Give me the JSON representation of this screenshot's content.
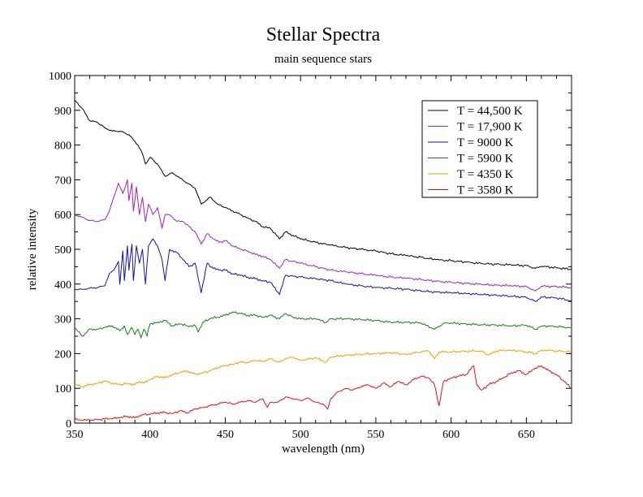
{
  "chart_data": {
    "type": "line",
    "title": "Stellar Spectra",
    "subtitle": "main sequence stars",
    "xlabel": "wavelength (nm)",
    "ylabel": "relative intensity",
    "xlim": [
      350,
      680
    ],
    "ylim": [
      0,
      1000
    ],
    "xticks": [
      350,
      400,
      450,
      500,
      550,
      600,
      650
    ],
    "yticks": [
      0,
      100,
      200,
      300,
      400,
      500,
      600,
      700,
      800,
      900,
      1000
    ],
    "grid": false,
    "legend_position": "top-right",
    "series": [
      {
        "name": "T = 44,500 K",
        "color": "#000000",
        "x": [
          350,
          355,
          360,
          365,
          370,
          375,
          380,
          383,
          386,
          389,
          392,
          395,
          397,
          400,
          405,
          410,
          415,
          420,
          425,
          430,
          434,
          440,
          445,
          450,
          455,
          460,
          465,
          470,
          475,
          480,
          486,
          490,
          495,
          500,
          510,
          520,
          530,
          540,
          550,
          560,
          570,
          580,
          590,
          600,
          610,
          620,
          630,
          640,
          650,
          656,
          660,
          670,
          680
        ],
        "y": [
          930,
          905,
          870,
          865,
          850,
          840,
          840,
          835,
          830,
          815,
          800,
          775,
          745,
          765,
          745,
          710,
          720,
          705,
          690,
          675,
          630,
          650,
          630,
          620,
          610,
          600,
          590,
          580,
          565,
          560,
          530,
          550,
          540,
          530,
          520,
          512,
          505,
          500,
          495,
          487,
          482,
          477,
          470,
          467,
          463,
          459,
          457,
          455,
          453,
          445,
          451,
          447,
          442
        ]
      },
      {
        "name": "T = 17,900 K",
        "color": "#a020c0",
        "x": [
          350,
          355,
          360,
          365,
          370,
          373,
          376,
          379,
          382,
          385,
          386,
          388,
          389,
          391,
          393,
          395,
          397,
          399,
          402,
          405,
          408,
          410,
          413,
          418,
          422,
          426,
          430,
          434,
          438,
          442,
          446,
          450,
          455,
          460,
          465,
          470,
          475,
          480,
          486,
          490,
          500,
          510,
          520,
          530,
          540,
          550,
          560,
          570,
          580,
          590,
          600,
          610,
          620,
          630,
          640,
          650,
          656,
          660,
          670,
          680
        ],
        "y": [
          600,
          592,
          583,
          580,
          585,
          610,
          650,
          690,
          660,
          700,
          640,
          690,
          610,
          680,
          600,
          650,
          580,
          630,
          600,
          620,
          560,
          600,
          600,
          580,
          580,
          565,
          550,
          515,
          545,
          530,
          520,
          525,
          510,
          500,
          495,
          485,
          480,
          470,
          445,
          470,
          460,
          450,
          440,
          435,
          430,
          425,
          420,
          417,
          413,
          408,
          405,
          402,
          399,
          397,
          395,
          393,
          380,
          394,
          393,
          390
        ]
      },
      {
        "name": "T = 9000 K",
        "color": "#1010b0",
        "x": [
          350,
          355,
          360,
          365,
          370,
          373,
          376,
          379,
          380,
          382,
          383,
          385,
          386,
          388,
          389,
          391,
          393,
          395,
          397,
          399,
          402,
          405,
          408,
          410,
          413,
          418,
          422,
          426,
          430,
          434,
          438,
          442,
          446,
          450,
          455,
          460,
          465,
          470,
          475,
          480,
          486,
          490,
          500,
          510,
          520,
          530,
          540,
          550,
          560,
          570,
          580,
          590,
          600,
          610,
          620,
          630,
          640,
          650,
          656,
          660,
          670,
          680
        ],
        "y": [
          385,
          385,
          388,
          390,
          395,
          430,
          440,
          465,
          400,
          495,
          410,
          510,
          440,
          515,
          410,
          510,
          460,
          500,
          400,
          510,
          530,
          510,
          470,
          410,
          500,
          490,
          470,
          450,
          460,
          375,
          460,
          445,
          440,
          440,
          430,
          425,
          420,
          415,
          410,
          405,
          370,
          425,
          420,
          415,
          410,
          400,
          395,
          390,
          388,
          385,
          380,
          377,
          375,
          373,
          370,
          368,
          365,
          362,
          350,
          363,
          360,
          352
        ]
      },
      {
        "name": "T = 5900 K",
        "color": "#108010",
        "x": [
          350,
          355,
          360,
          365,
          370,
          375,
          380,
          383,
          385,
          388,
          390,
          392,
          394,
          396,
          398,
          400,
          405,
          410,
          415,
          420,
          425,
          430,
          432,
          435,
          440,
          445,
          450,
          455,
          460,
          465,
          470,
          475,
          480,
          486,
          490,
          495,
          500,
          510,
          517,
          520,
          530,
          540,
          550,
          560,
          570,
          580,
          589,
          595,
          600,
          610,
          620,
          630,
          640,
          650,
          656,
          660,
          670,
          680
        ],
        "y": [
          275,
          250,
          270,
          270,
          275,
          280,
          265,
          280,
          255,
          275,
          255,
          270,
          245,
          270,
          250,
          285,
          290,
          295,
          280,
          285,
          280,
          280,
          262,
          290,
          300,
          305,
          310,
          320,
          315,
          310,
          310,
          305,
          310,
          300,
          315,
          305,
          300,
          300,
          290,
          300,
          300,
          298,
          295,
          290,
          290,
          288,
          270,
          287,
          288,
          285,
          283,
          282,
          280,
          282,
          270,
          280,
          278,
          274
        ]
      },
      {
        "name": "T = 4350 K",
        "color": "#f0a000",
        "x": [
          350,
          355,
          360,
          365,
          370,
          375,
          380,
          385,
          390,
          393,
          396,
          400,
          405,
          410,
          415,
          420,
          425,
          430,
          435,
          440,
          445,
          450,
          455,
          460,
          465,
          470,
          475,
          480,
          486,
          490,
          495,
          500,
          510,
          517,
          520,
          530,
          540,
          550,
          560,
          570,
          580,
          585,
          589,
          592,
          600,
          610,
          620,
          625,
          630,
          640,
          650,
          656,
          660,
          670,
          680
        ],
        "y": [
          110,
          105,
          110,
          115,
          120,
          115,
          110,
          115,
          110,
          120,
          115,
          125,
          135,
          130,
          140,
          145,
          150,
          140,
          145,
          150,
          160,
          165,
          170,
          175,
          175,
          180,
          178,
          185,
          175,
          185,
          190,
          180,
          188,
          175,
          190,
          195,
          198,
          200,
          202,
          198,
          205,
          208,
          185,
          205,
          205,
          207,
          208,
          195,
          208,
          210,
          205,
          200,
          210,
          208,
          205
        ]
      },
      {
        "name": "T = 3580 K",
        "color": "#e01010",
        "x": [
          350,
          360,
          370,
          380,
          385,
          390,
          395,
          400,
          405,
          410,
          415,
          420,
          425,
          430,
          435,
          440,
          445,
          450,
          455,
          460,
          465,
          470,
          475,
          478,
          480,
          485,
          490,
          495,
          500,
          505,
          510,
          515,
          518,
          520,
          525,
          530,
          535,
          540,
          545,
          550,
          555,
          560,
          565,
          570,
          575,
          580,
          585,
          589,
          592,
          595,
          600,
          605,
          610,
          615,
          617,
          620,
          625,
          630,
          635,
          640,
          645,
          650,
          655,
          660,
          665,
          670,
          675,
          680
        ],
        "y": [
          10,
          8,
          12,
          15,
          20,
          15,
          25,
          25,
          30,
          30,
          28,
          35,
          30,
          40,
          45,
          50,
          55,
          60,
          55,
          60,
          65,
          60,
          70,
          45,
          60,
          60,
          75,
          70,
          65,
          72,
          60,
          55,
          40,
          70,
          90,
          100,
          95,
          105,
          110,
          100,
          115,
          105,
          120,
          110,
          125,
          135,
          130,
          110,
          50,
          120,
          130,
          135,
          140,
          165,
          110,
          95,
          110,
          120,
          130,
          145,
          150,
          140,
          155,
          165,
          150,
          140,
          120,
          100
        ]
      }
    ]
  }
}
